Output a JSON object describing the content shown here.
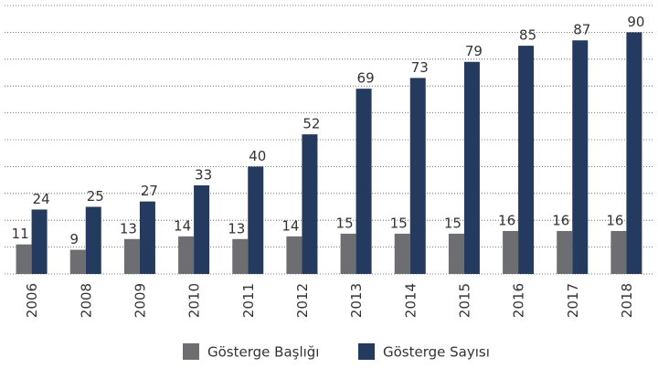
{
  "chart_data": {
    "type": "bar",
    "categories": [
      "2006",
      "2008",
      "2009",
      "2010",
      "2011",
      "2012",
      "2013",
      "2014",
      "2015",
      "2016",
      "2017",
      "2018"
    ],
    "series": [
      {
        "name": "Gösterge Başlığı",
        "color": "#6d6e71",
        "values": [
          11,
          9,
          13,
          14,
          13,
          14,
          15,
          15,
          15,
          16,
          16,
          16
        ]
      },
      {
        "name": "Gösterge Sayısı",
        "color": "#243a5e",
        "values": [
          24,
          25,
          27,
          33,
          40,
          52,
          69,
          73,
          79,
          85,
          87,
          90
        ]
      }
    ],
    "ylim": [
      0,
      100
    ],
    "yticks": [
      0,
      10,
      20,
      30,
      40,
      50,
      60,
      70,
      80,
      90,
      100
    ],
    "grid": true,
    "legend": "bottom"
  }
}
